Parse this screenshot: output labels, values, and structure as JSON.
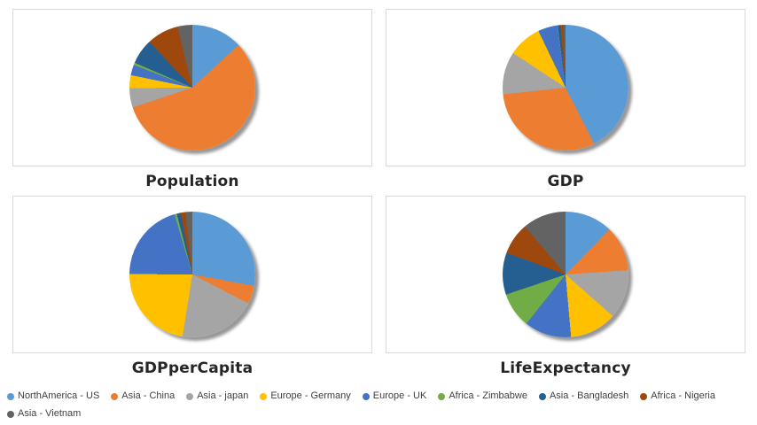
{
  "page": {
    "background": "#FFFFFF",
    "panel_border_color": "#D9D9D9",
    "title_color": "#262626",
    "legend_text_color": "#404040"
  },
  "categories": [
    "NorthAmerica - US",
    "Asia - China",
    "Asia - japan",
    "Europe - Germany",
    "Europe - UK",
    "Africa - Zimbabwe",
    "Asia - Bangladesh",
    "Africa - Nigeria",
    "Asia - Vietnam"
  ],
  "palette": [
    "#5B9BD5",
    "#ED7D31",
    "#A5A5A5",
    "#FFC000",
    "#4472C4",
    "#70AD47",
    "#255E91",
    "#9E480E",
    "#636363"
  ],
  "chart_data": [
    {
      "id": "population",
      "type": "pie",
      "title": "Population",
      "values_unit": "percent_share",
      "categories_ref": "categories",
      "values": [
        13.1,
        56.8,
        5.0,
        3.3,
        2.7,
        0.6,
        6.5,
        8.2,
        3.8
      ],
      "legend_position": "bottom",
      "start_angle_deg": 0,
      "direction": "clockwise"
    },
    {
      "id": "gdp",
      "type": "pie",
      "title": "GDP",
      "values_unit": "percent_share",
      "categories_ref": "categories",
      "values": [
        42.5,
        30.8,
        11.0,
        8.6,
        5.0,
        0.1,
        0.7,
        0.8,
        0.5
      ],
      "legend_position": "bottom",
      "start_angle_deg": 0,
      "direction": "clockwise"
    },
    {
      "id": "gdp_per_capita",
      "type": "pie",
      "title": "GDPperCapita",
      "values_unit": "percent_share",
      "categories_ref": "categories",
      "values": [
        27.9,
        4.7,
        19.9,
        22.6,
        20.3,
        0.6,
        1.0,
        1.2,
        1.8
      ],
      "legend_position": "bottom",
      "start_angle_deg": 0,
      "direction": "clockwise"
    },
    {
      "id": "life_expectancy",
      "type": "pie",
      "title": "LifeExpectancy",
      "values_unit": "percent_share",
      "categories_ref": "categories",
      "values": [
        12.3,
        11.6,
        12.6,
        12.1,
        12.1,
        9.1,
        10.8,
        8.2,
        11.2
      ],
      "legend_position": "bottom",
      "start_angle_deg": 0,
      "direction": "clockwise"
    }
  ],
  "legend": {
    "items": [
      {
        "label": "NorthAmerica - US",
        "color": "#5B9BD5"
      },
      {
        "label": "Asia - China",
        "color": "#ED7D31"
      },
      {
        "label": "Asia - japan",
        "color": "#A5A5A5"
      },
      {
        "label": "Europe - Germany",
        "color": "#FFC000"
      },
      {
        "label": "Europe - UK",
        "color": "#4472C4"
      },
      {
        "label": "Africa - Zimbabwe",
        "color": "#70AD47"
      },
      {
        "label": "Asia - Bangladesh",
        "color": "#255E91"
      },
      {
        "label": "Africa - Nigeria",
        "color": "#9E480E"
      },
      {
        "label": "Asia - Vietnam",
        "color": "#636363"
      }
    ]
  }
}
